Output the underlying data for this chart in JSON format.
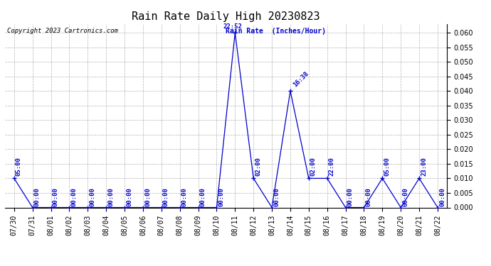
{
  "title": "Rain Rate Daily High 20230823",
  "ylabel": "Rain Rate  (Inches/Hour)",
  "copyright": "Copyright 2023 Cartronics.com",
  "line_color": "#0000cc",
  "background_color": "#ffffff",
  "grid_color": "#aaaaaa",
  "title_fontsize": 11,
  "tick_fontsize": 7,
  "ylim": [
    0.0,
    0.063
  ],
  "yticks": [
    0.0,
    0.005,
    0.01,
    0.015,
    0.02,
    0.025,
    0.03,
    0.035,
    0.04,
    0.045,
    0.05,
    0.055,
    0.06
  ],
  "data_points": [
    {
      "idx": 0,
      "date": "07/30",
      "value": 0.01,
      "label": "05:00",
      "label_rot": 90,
      "label_above": true
    },
    {
      "idx": 1,
      "date": "07/31",
      "value": 0.0,
      "label": "00:00",
      "label_rot": 90,
      "label_above": false
    },
    {
      "idx": 2,
      "date": "08/01",
      "value": 0.0,
      "label": "00:00",
      "label_rot": 90,
      "label_above": false
    },
    {
      "idx": 3,
      "date": "08/02",
      "value": 0.0,
      "label": "00:00",
      "label_rot": 90,
      "label_above": false
    },
    {
      "idx": 4,
      "date": "08/03",
      "value": 0.0,
      "label": "00:00",
      "label_rot": 90,
      "label_above": false
    },
    {
      "idx": 5,
      "date": "08/04",
      "value": 0.0,
      "label": "00:00",
      "label_rot": 90,
      "label_above": false
    },
    {
      "idx": 6,
      "date": "08/05",
      "value": 0.0,
      "label": "00:00",
      "label_rot": 90,
      "label_above": false
    },
    {
      "idx": 7,
      "date": "08/06",
      "value": 0.0,
      "label": "00:00",
      "label_rot": 90,
      "label_above": false
    },
    {
      "idx": 8,
      "date": "08/07",
      "value": 0.0,
      "label": "00:00",
      "label_rot": 90,
      "label_above": false
    },
    {
      "idx": 9,
      "date": "08/08",
      "value": 0.0,
      "label": "00:00",
      "label_rot": 90,
      "label_above": false
    },
    {
      "idx": 10,
      "date": "08/09",
      "value": 0.0,
      "label": "00:00",
      "label_rot": 90,
      "label_above": false
    },
    {
      "idx": 11,
      "date": "08/10",
      "value": 0.0,
      "label": "00:00",
      "label_rot": 90,
      "label_above": false
    },
    {
      "idx": 12,
      "date": "08/11",
      "value": 0.06,
      "label": "22:52",
      "label_rot": 0,
      "label_above": true
    },
    {
      "idx": 13,
      "date": "08/12",
      "value": 0.01,
      "label": "02:00",
      "label_rot": 90,
      "label_above": true
    },
    {
      "idx": 14,
      "date": "08/13",
      "value": 0.0,
      "label": "00:00",
      "label_rot": 90,
      "label_above": false
    },
    {
      "idx": 15,
      "date": "08/14",
      "value": 0.04,
      "label": "16:38",
      "label_rot": 45,
      "label_above": true
    },
    {
      "idx": 16,
      "date": "08/15",
      "value": 0.01,
      "label": "02:00",
      "label_rot": 90,
      "label_above": true
    },
    {
      "idx": 17,
      "date": "08/16",
      "value": 0.01,
      "label": "22:00",
      "label_rot": 90,
      "label_above": true
    },
    {
      "idx": 18,
      "date": "08/17",
      "value": 0.0,
      "label": "00:00",
      "label_rot": 90,
      "label_above": false
    },
    {
      "idx": 19,
      "date": "08/18",
      "value": 0.0,
      "label": "00:00",
      "label_rot": 90,
      "label_above": false
    },
    {
      "idx": 20,
      "date": "08/19",
      "value": 0.01,
      "label": "05:00",
      "label_rot": 90,
      "label_above": true
    },
    {
      "idx": 21,
      "date": "08/20",
      "value": 0.0,
      "label": "00:00",
      "label_rot": 90,
      "label_above": false
    },
    {
      "idx": 22,
      "date": "08/21",
      "value": 0.01,
      "label": "23:00",
      "label_rot": 90,
      "label_above": true
    },
    {
      "idx": 23,
      "date": "08/22",
      "value": 0.0,
      "label": "00:00",
      "label_rot": 90,
      "label_above": false
    }
  ],
  "x_tick_labels": [
    "07/30",
    "07/31",
    "08/01",
    "08/02",
    "08/03",
    "08/04",
    "08/05",
    "08/06",
    "08/07",
    "08/08",
    "08/09",
    "08/10",
    "08/11",
    "08/12",
    "08/13",
    "08/14",
    "08/15",
    "08/16",
    "08/17",
    "08/18",
    "08/19",
    "08/20",
    "08/21",
    "08/22"
  ]
}
